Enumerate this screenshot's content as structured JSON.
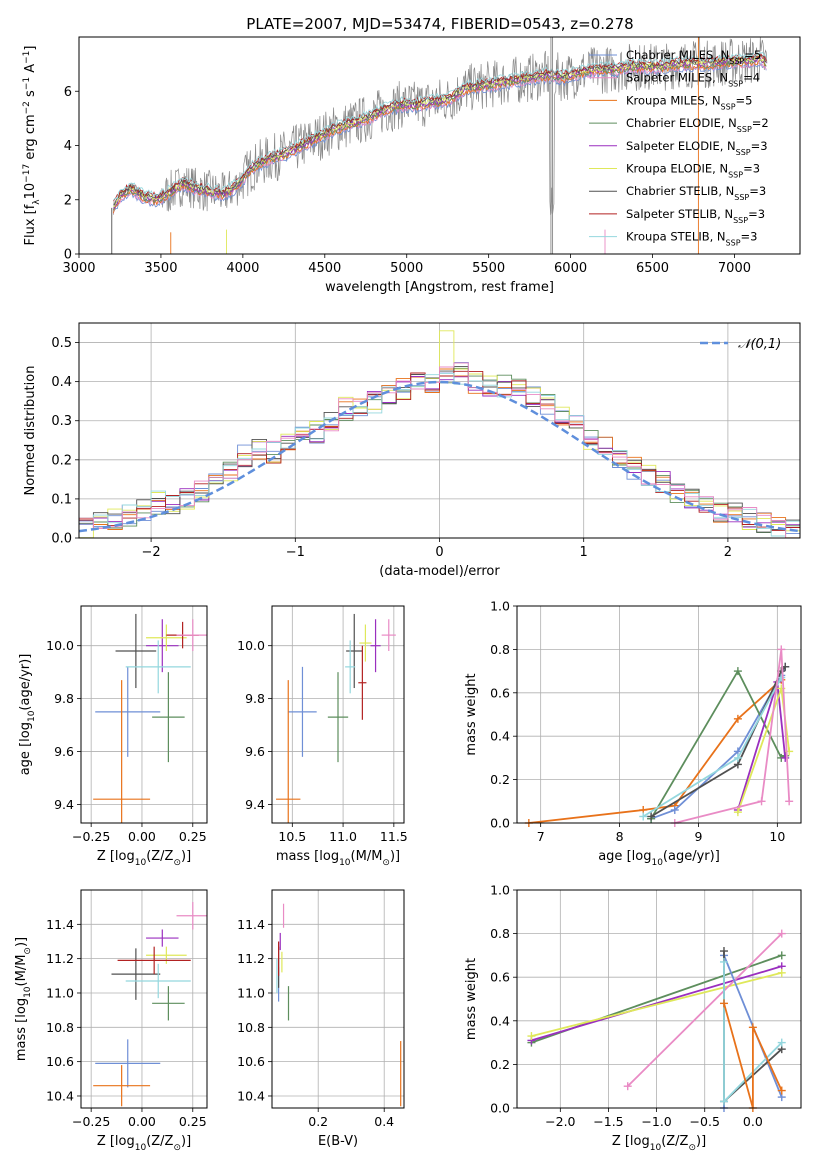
{
  "figure_title": "PLATE=2007, MJD=53474, FIBERID=0543, z=0.278",
  "colors": {
    "blue": "#6f8fd6",
    "orange": "#e8721a",
    "green": "#5d8e5d",
    "purple": "#9a2fbf",
    "yellow": "#dfe85a",
    "dark": "#505050",
    "red": "#b22222",
    "cyan": "#94d7de",
    "pink": "#e98bc5",
    "gray": "#888888",
    "gauss": "#5f8fdc"
  },
  "chart_data": [
    {
      "id": "spectrum",
      "type": "line",
      "xlabel": "wavelength [Angstrom, rest frame]",
      "ylabel": "Flux [f$_\\lambda$10$^{-17}$ erg cm$^{-2}$ s$^{-1}$ A$^{-1}$]",
      "xlim": [
        3000,
        7400
      ],
      "ylim": [
        0,
        8
      ],
      "xticks": [
        "3000",
        "3500",
        "4000",
        "4500",
        "5000",
        "5500",
        "6000",
        "6500",
        "7000"
      ],
      "yticks": [
        "0",
        "2",
        "4",
        "6"
      ],
      "grid": false,
      "legend_position": "top-right",
      "data_x": [
        3210,
        3260,
        3320,
        3400,
        3480,
        3560,
        3640,
        3720,
        3800,
        3880,
        3960,
        4060,
        4160,
        4260,
        4360,
        4460,
        4560,
        4660,
        4760,
        4860,
        4960,
        5060,
        5160,
        5260,
        5360,
        5460,
        5560,
        5660,
        5760,
        5860,
        5960,
        6060,
        6160,
        6260,
        6360,
        6460,
        6560,
        6660,
        6760,
        6860,
        6960,
        7060,
        7160,
        7200
      ],
      "data_y": [
        1.7,
        2.2,
        2.4,
        2.1,
        2.0,
        2.3,
        2.6,
        2.4,
        2.3,
        2.2,
        2.5,
        3.2,
        3.5,
        3.7,
        4.0,
        4.3,
        4.6,
        4.8,
        5.0,
        5.3,
        5.5,
        5.5,
        5.6,
        5.7,
        6.1,
        6.2,
        6.3,
        6.4,
        6.5,
        6.6,
        6.5,
        6.7,
        6.8,
        6.8,
        6.9,
        6.9,
        6.9,
        7.0,
        7.0,
        7.0,
        7.1,
        7.1,
        7.2,
        7.0
      ],
      "series": [
        {
          "name": "Chabrier MILES, N$_{SSP}$=5",
          "color": "#6f8fd6"
        },
        {
          "name": "Salpeter MILES, N$_{SSP}$=4",
          "color": "#e98bc5"
        },
        {
          "name": "Kroupa MILES, N$_{SSP}$=5",
          "color": "#e8721a"
        },
        {
          "name": "Chabrier ELODIE, N$_{SSP}$=2",
          "color": "#5d8e5d"
        },
        {
          "name": "Salpeter ELODIE, N$_{SSP}$=3",
          "color": "#9a2fbf"
        },
        {
          "name": "Kroupa ELODIE, N$_{SSP}$=3",
          "color": "#dfe85a"
        },
        {
          "name": "Chabrier STELIB, N$_{SSP}$=3",
          "color": "#505050"
        },
        {
          "name": "Salpeter STELIB, N$_{SSP}$=3",
          "color": "#b22222"
        },
        {
          "name": "Kroupa STELIB, N$_{SSP}$=3",
          "color": "#94d7de"
        }
      ]
    },
    {
      "id": "residuals",
      "type": "line",
      "xlabel": "(data-model)/error",
      "ylabel": "Normed distribution",
      "xlim": [
        -2.5,
        2.5
      ],
      "ylim": [
        0,
        0.55
      ],
      "xticks": [
        "−2",
        "−1",
        "0",
        "1",
        "2"
      ],
      "yticks": [
        "0.0",
        "0.1",
        "0.2",
        "0.3",
        "0.4",
        "0.5"
      ],
      "grid": true,
      "legend_position": "top-right",
      "gauss_label": "$\\mathcal{N}(0,1)$",
      "bin_width": 0.1,
      "hist_x": [
        -2.5,
        -2.4,
        -2.3,
        -2.2,
        -2.1,
        -2.0,
        -1.9,
        -1.8,
        -1.7,
        -1.6,
        -1.5,
        -1.4,
        -1.3,
        -1.2,
        -1.1,
        -1.0,
        -0.9,
        -0.8,
        -0.7,
        -0.6,
        -0.5,
        -0.4,
        -0.3,
        -0.2,
        -0.1,
        0.0,
        0.1,
        0.2,
        0.3,
        0.4,
        0.5,
        0.6,
        0.7,
        0.8,
        0.9,
        1.0,
        1.1,
        1.2,
        1.3,
        1.4,
        1.5,
        1.6,
        1.7,
        1.8,
        1.9,
        2.0,
        2.1,
        2.2,
        2.3,
        2.4
      ],
      "hist_y": [
        0.03,
        0.04,
        0.05,
        0.06,
        0.07,
        0.09,
        0.09,
        0.1,
        0.12,
        0.15,
        0.17,
        0.21,
        0.23,
        0.22,
        0.25,
        0.26,
        0.27,
        0.3,
        0.33,
        0.33,
        0.35,
        0.37,
        0.38,
        0.4,
        0.4,
        0.41,
        0.42,
        0.4,
        0.39,
        0.39,
        0.39,
        0.36,
        0.34,
        0.31,
        0.3,
        0.25,
        0.23,
        0.2,
        0.18,
        0.16,
        0.14,
        0.12,
        0.1,
        0.09,
        0.07,
        0.06,
        0.05,
        0.04,
        0.03,
        0.02
      ]
    },
    {
      "id": "age_vs_Z",
      "type": "scatter",
      "xlabel": "Z [log$_{10}$(Z/Z$_\\odot$)]",
      "ylabel": "age  [log$_{10}$(age/yr)]",
      "xlim": [
        -0.3,
        0.32
      ],
      "ylim": [
        9.33,
        10.15
      ],
      "xticks": [
        "−0.25",
        "0.00",
        "0.25"
      ],
      "yticks": [
        "9.4",
        "9.6",
        "9.8",
        "10.0"
      ],
      "grid": true,
      "points": [
        {
          "x": -0.07,
          "y": 9.75,
          "ex": 0.16,
          "ey": 0.17,
          "c": "#6f8fd6"
        },
        {
          "x": -0.1,
          "y": 9.42,
          "ex": 0.14,
          "ey": 0.45,
          "c": "#e8721a"
        },
        {
          "x": 0.13,
          "y": 9.73,
          "ex": 0.08,
          "ey": 0.17,
          "c": "#5d8e5d"
        },
        {
          "x": 0.1,
          "y": 10.0,
          "ex": 0.08,
          "ey": 0.1,
          "c": "#9a2fbf"
        },
        {
          "x": 0.12,
          "y": 10.03,
          "ex": 0.1,
          "ey": 0.05,
          "c": "#dfe85a"
        },
        {
          "x": -0.03,
          "y": 9.98,
          "ex": 0.1,
          "ey": 0.14,
          "c": "#505050"
        },
        {
          "x": 0.2,
          "y": 10.04,
          "ex": 0.08,
          "ey": 0.05,
          "c": "#b22222"
        },
        {
          "x": 0.08,
          "y": 9.92,
          "ex": 0.16,
          "ey": 0.1,
          "c": "#94d7de"
        },
        {
          "x": 0.25,
          "y": 10.04,
          "ex": 0.08,
          "ey": 0.06,
          "c": "#e98bc5"
        }
      ]
    },
    {
      "id": "age_vs_mass",
      "type": "scatter",
      "xlabel": "mass [log$_{10}$(M/M$_\\odot$)]",
      "ylabel": "",
      "xlim": [
        10.3,
        11.6
      ],
      "ylim": [
        9.33,
        10.15
      ],
      "xticks": [
        "10.5",
        "11.0",
        "11.5"
      ],
      "yticks": [
        "9.4",
        "9.6",
        "9.8",
        "10.0"
      ],
      "grid": true,
      "points": [
        {
          "x": 10.6,
          "y": 9.75,
          "ex": 0.14,
          "ey": 0.17,
          "c": "#6f8fd6"
        },
        {
          "x": 10.46,
          "y": 9.42,
          "ex": 0.12,
          "ey": 0.45,
          "c": "#e8721a"
        },
        {
          "x": 10.95,
          "y": 9.73,
          "ex": 0.1,
          "ey": 0.17,
          "c": "#5d8e5d"
        },
        {
          "x": 11.32,
          "y": 10.0,
          "ex": 0.05,
          "ey": 0.1,
          "c": "#9a2fbf"
        },
        {
          "x": 11.22,
          "y": 10.01,
          "ex": 0.06,
          "ey": 0.07,
          "c": "#dfe85a"
        },
        {
          "x": 11.11,
          "y": 9.98,
          "ex": 0.08,
          "ey": 0.14,
          "c": "#505050"
        },
        {
          "x": 11.19,
          "y": 9.86,
          "ex": 0.04,
          "ey": 0.14,
          "c": "#b22222"
        },
        {
          "x": 11.07,
          "y": 9.92,
          "ex": 0.05,
          "ey": 0.1,
          "c": "#94d7de"
        },
        {
          "x": 11.45,
          "y": 10.04,
          "ex": 0.07,
          "ey": 0.06,
          "c": "#e98bc5"
        }
      ]
    },
    {
      "id": "weight_vs_age",
      "type": "line",
      "xlabel": "age  [log$_{10}$(age/yr)]",
      "ylabel": "mass weight",
      "xlim": [
        6.7,
        10.3
      ],
      "ylim": [
        0,
        1
      ],
      "xticks": [
        "7",
        "8",
        "9",
        "10"
      ],
      "yticks": [
        "0.0",
        "0.2",
        "0.4",
        "0.6",
        "0.8",
        "1.0"
      ],
      "grid": true,
      "series": [
        {
          "c": "#e8721a",
          "x": [
            6.85,
            8.3,
            8.7,
            9.5,
            10.05
          ],
          "y": [
            0.0,
            0.06,
            0.08,
            0.48,
            0.66
          ]
        },
        {
          "c": "#6f8fd6",
          "x": [
            8.4,
            8.7,
            9.5,
            10.05,
            10.1
          ],
          "y": [
            0.02,
            0.06,
            0.33,
            0.68,
            0.72
          ]
        },
        {
          "c": "#5d8e5d",
          "x": [
            8.4,
            9.5,
            10.05,
            10.1
          ],
          "y": [
            0.02,
            0.7,
            0.3,
            0.31
          ]
        },
        {
          "c": "#9a2fbf",
          "x": [
            9.5,
            10.0,
            10.1
          ],
          "y": [
            0.06,
            0.65,
            0.3
          ]
        },
        {
          "c": "#dfe85a",
          "x": [
            9.5,
            10.05,
            10.15
          ],
          "y": [
            0.05,
            0.62,
            0.33
          ]
        },
        {
          "c": "#505050",
          "x": [
            8.4,
            9.5,
            10.05,
            10.1
          ],
          "y": [
            0.03,
            0.27,
            0.7,
            0.72
          ]
        },
        {
          "c": "#94d7de",
          "x": [
            8.3,
            9.5,
            10.05
          ],
          "y": [
            0.03,
            0.3,
            0.67
          ]
        },
        {
          "c": "#e98bc5",
          "x": [
            8.7,
            9.8,
            10.05,
            10.15
          ],
          "y": [
            0.0,
            0.1,
            0.8,
            0.1
          ]
        }
      ]
    },
    {
      "id": "mass_vs_Z",
      "type": "scatter",
      "xlabel": "Z [log$_{10}$(Z/Z$_\\odot$)]",
      "ylabel": "mass [log$_{10}$(M/M$_\\odot$)]",
      "xlim": [
        -0.3,
        0.32
      ],
      "ylim": [
        10.33,
        11.6
      ],
      "xticks": [
        "−0.25",
        "0.00",
        "0.25"
      ],
      "yticks": [
        "10.4",
        "10.6",
        "10.8",
        "11.0",
        "11.2",
        "11.4"
      ],
      "grid": true,
      "points": [
        {
          "x": -0.07,
          "y": 10.59,
          "ex": 0.16,
          "ey": 0.14,
          "c": "#6f8fd6"
        },
        {
          "x": -0.1,
          "y": 10.46,
          "ex": 0.14,
          "ey": 0.12,
          "c": "#e8721a"
        },
        {
          "x": 0.13,
          "y": 10.94,
          "ex": 0.08,
          "ey": 0.1,
          "c": "#5d8e5d"
        },
        {
          "x": 0.1,
          "y": 11.32,
          "ex": 0.08,
          "ey": 0.05,
          "c": "#9a2fbf"
        },
        {
          "x": 0.12,
          "y": 11.22,
          "ex": 0.1,
          "ey": 0.05,
          "c": "#dfe85a"
        },
        {
          "x": -0.03,
          "y": 11.11,
          "ex": 0.12,
          "ey": 0.15,
          "c": "#505050"
        },
        {
          "x": 0.06,
          "y": 11.19,
          "ex": 0.18,
          "ey": 0.08,
          "c": "#b22222"
        },
        {
          "x": 0.08,
          "y": 11.07,
          "ex": 0.16,
          "ey": 0.1,
          "c": "#94d7de"
        },
        {
          "x": 0.25,
          "y": 11.45,
          "ex": 0.08,
          "ey": 0.08,
          "c": "#e98bc5"
        }
      ]
    },
    {
      "id": "mass_vs_ebv",
      "type": "scatter",
      "xlabel": "E(B-V)",
      "ylabel": "",
      "xlim": [
        0.06,
        0.46
      ],
      "ylim": [
        10.33,
        11.6
      ],
      "xticks": [
        "0.2",
        "0.4"
      ],
      "yticks": [
        "10.4",
        "10.6",
        "10.8",
        "11.0",
        "11.2",
        "11.4"
      ],
      "grid": true,
      "points": [
        {
          "x": 0.08,
          "y": 11.05,
          "ex": 0,
          "ey": 0.1,
          "c": "#6f8fd6"
        },
        {
          "x": 0.45,
          "y": 10.53,
          "ex": 0,
          "ey": 0.19,
          "c": "#e8721a"
        },
        {
          "x": 0.11,
          "y": 10.94,
          "ex": 0,
          "ey": 0.1,
          "c": "#5d8e5d"
        },
        {
          "x": 0.085,
          "y": 11.3,
          "ex": 0,
          "ey": 0.05,
          "c": "#9a2fbf"
        },
        {
          "x": 0.09,
          "y": 11.18,
          "ex": 0,
          "ey": 0.06,
          "c": "#dfe85a"
        },
        {
          "x": 0.08,
          "y": 11.15,
          "ex": 0,
          "ey": 0.12,
          "c": "#505050"
        },
        {
          "x": 0.08,
          "y": 11.2,
          "ex": 0,
          "ey": 0.1,
          "c": "#b22222"
        },
        {
          "x": 0.075,
          "y": 11.1,
          "ex": 0,
          "ey": 0.1,
          "c": "#94d7de"
        },
        {
          "x": 0.095,
          "y": 11.45,
          "ex": 0,
          "ey": 0.07,
          "c": "#e98bc5"
        }
      ]
    },
    {
      "id": "weight_vs_Z",
      "type": "line",
      "xlabel": "Z [log$_{10}$(Z/Z$_\\odot$)]",
      "ylabel": "mass weight",
      "xlim": [
        -2.45,
        0.5
      ],
      "ylim": [
        0,
        1
      ],
      "xticks": [
        "−2.0",
        "−1.5",
        "−1.0",
        "−0.5",
        "0.0"
      ],
      "yticks": [
        "0.0",
        "0.2",
        "0.4",
        "0.6",
        "0.8",
        "1.0"
      ],
      "grid": true,
      "series": [
        {
          "c": "#5d8e5d",
          "x": [
            -2.3,
            0.3
          ],
          "y": [
            0.3,
            0.7
          ]
        },
        {
          "c": "#9a2fbf",
          "x": [
            -2.3,
            0.3
          ],
          "y": [
            0.31,
            0.65
          ]
        },
        {
          "c": "#dfe85a",
          "x": [
            -2.3,
            0.3
          ],
          "y": [
            0.33,
            0.62
          ]
        },
        {
          "c": "#e98bc5",
          "x": [
            -1.3,
            0.3
          ],
          "y": [
            0.1,
            0.8
          ]
        },
        {
          "c": "#6f8fd6",
          "x": [
            -0.3,
            -0.3,
            0.3
          ],
          "y": [
            0.0,
            0.7,
            0.05
          ]
        },
        {
          "c": "#505050",
          "x": [
            -0.3,
            -0.3,
            0.3
          ],
          "y": [
            0.72,
            0.03,
            0.27
          ]
        },
        {
          "c": "#94d7de",
          "x": [
            -0.3,
            -0.3,
            0.3
          ],
          "y": [
            0.67,
            0.03,
            0.3
          ]
        },
        {
          "c": "#e8721a",
          "x": [
            -0.3,
            0.0,
            0.0,
            0.3
          ],
          "y": [
            0.48,
            0.0,
            0.37,
            0.08
          ]
        }
      ]
    }
  ]
}
